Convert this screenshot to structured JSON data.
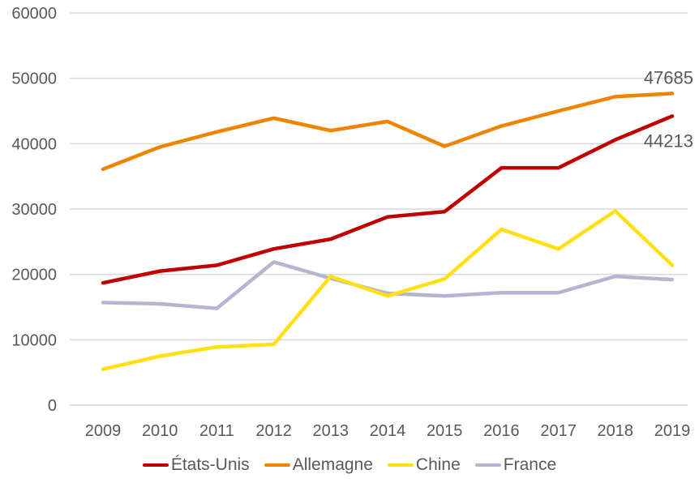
{
  "chart_data": {
    "type": "line",
    "title": "",
    "xlabel": "",
    "ylabel": "",
    "x": [
      2009,
      2010,
      2011,
      2012,
      2013,
      2014,
      2015,
      2016,
      2017,
      2018,
      2019
    ],
    "yticks": [
      0,
      10000,
      20000,
      30000,
      40000,
      50000,
      60000
    ],
    "ylim": [
      0,
      60000
    ],
    "grid": true,
    "legend_position": "bottom",
    "series": [
      {
        "name": "États-Unis",
        "color": "#c00000",
        "values": [
          18700,
          20500,
          21400,
          23900,
          25400,
          28800,
          29600,
          36300,
          36300,
          40600,
          44213
        ]
      },
      {
        "name": "Allemagne",
        "color": "#ee8500",
        "values": [
          36100,
          39500,
          41800,
          43900,
          42000,
          43400,
          39600,
          42700,
          45000,
          47200,
          47685
        ]
      },
      {
        "name": "Chine",
        "color": "#ffe014",
        "values": [
          5500,
          7500,
          8900,
          9300,
          19700,
          16700,
          19300,
          26900,
          23900,
          29700,
          21400
        ]
      },
      {
        "name": "France",
        "color": "#b5b5d2",
        "values": [
          15700,
          15500,
          14800,
          21900,
          19400,
          17100,
          16700,
          17200,
          17200,
          19700,
          19200
        ]
      }
    ],
    "annotations": [
      {
        "series": "Allemagne",
        "x": 2019,
        "text": "47685",
        "placement": "above"
      },
      {
        "series": "États-Unis",
        "x": 2019,
        "text": "44213",
        "placement": "below"
      }
    ]
  },
  "colors": {
    "grid": "#d9d9d9",
    "axis_text": "#595959",
    "annotation_text": "#595959",
    "background": "#ffffff"
  }
}
